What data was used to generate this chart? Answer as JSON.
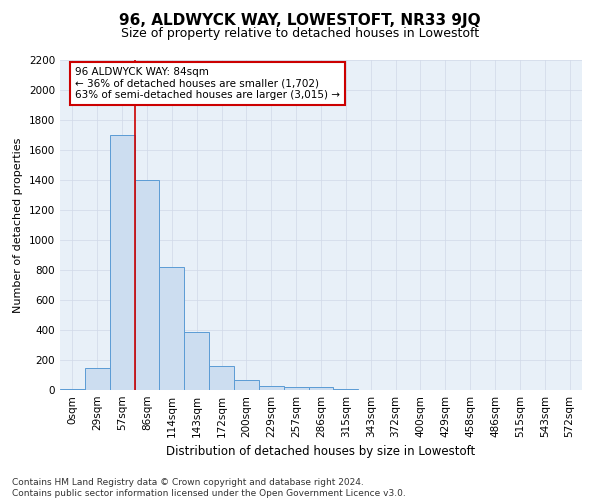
{
  "title": "96, ALDWYCK WAY, LOWESTOFT, NR33 9JQ",
  "subtitle": "Size of property relative to detached houses in Lowestoft",
  "xlabel": "Distribution of detached houses by size in Lowestoft",
  "ylabel": "Number of detached properties",
  "footer_line1": "Contains HM Land Registry data © Crown copyright and database right 2024.",
  "footer_line2": "Contains public sector information licensed under the Open Government Licence v3.0.",
  "bar_labels": [
    "0sqm",
    "29sqm",
    "57sqm",
    "86sqm",
    "114sqm",
    "143sqm",
    "172sqm",
    "200sqm",
    "229sqm",
    "257sqm",
    "286sqm",
    "315sqm",
    "343sqm",
    "372sqm",
    "400sqm",
    "429sqm",
    "458sqm",
    "486sqm",
    "515sqm",
    "543sqm",
    "572sqm"
  ],
  "bar_values": [
    10,
    150,
    1700,
    1400,
    820,
    390,
    160,
    65,
    30,
    20,
    20,
    5,
    0,
    0,
    0,
    0,
    0,
    0,
    0,
    0,
    0
  ],
  "bar_color": "#ccddf0",
  "bar_edge_color": "#5b9bd5",
  "grid_color": "#d0d8e8",
  "annotation_text_line1": "96 ALDWYCK WAY: 84sqm",
  "annotation_text_line2": "← 36% of detached houses are smaller (1,702)",
  "annotation_text_line3": "63% of semi-detached houses are larger (3,015) →",
  "annotation_box_color": "#ffffff",
  "annotation_box_edge": "#cc0000",
  "marker_line_color": "#cc0000",
  "ylim": [
    0,
    2200
  ],
  "yticks": [
    0,
    200,
    400,
    600,
    800,
    1000,
    1200,
    1400,
    1600,
    1800,
    2000,
    2200
  ],
  "title_fontsize": 11,
  "subtitle_fontsize": 9,
  "xlabel_fontsize": 8.5,
  "ylabel_fontsize": 8,
  "tick_fontsize": 7.5,
  "annotation_fontsize": 7.5,
  "footer_fontsize": 6.5
}
